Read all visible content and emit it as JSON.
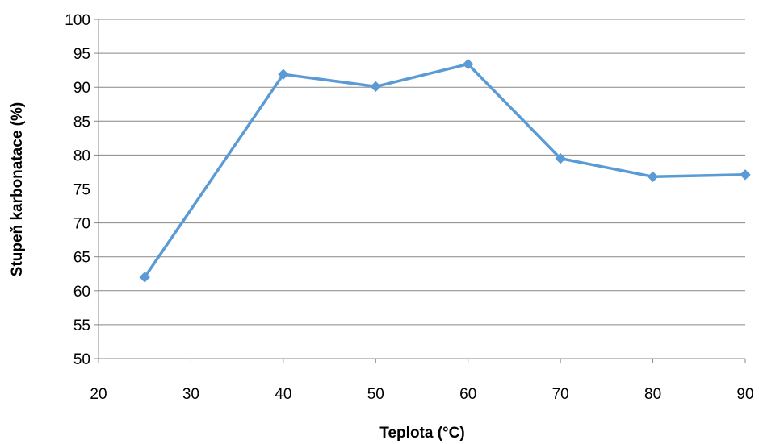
{
  "chart_data": {
    "type": "line",
    "title": "",
    "xlabel": "Teplota (°C)",
    "ylabel": "Stupeň karbonatace (%)",
    "xlim": [
      20,
      90
    ],
    "ylim": [
      50,
      100
    ],
    "x_ticks": [
      20,
      30,
      40,
      50,
      60,
      70,
      80,
      90
    ],
    "y_ticks": [
      50,
      55,
      60,
      65,
      70,
      75,
      80,
      85,
      90,
      95,
      100
    ],
    "grid": true,
    "legend": "none",
    "series": [
      {
        "color": "#5b9bd5",
        "marker": "diamond",
        "x": [
          25,
          40,
          50,
          60,
          70,
          80,
          90
        ],
        "y": [
          62.0,
          91.9,
          90.1,
          93.4,
          79.5,
          76.8,
          77.1
        ]
      }
    ]
  }
}
